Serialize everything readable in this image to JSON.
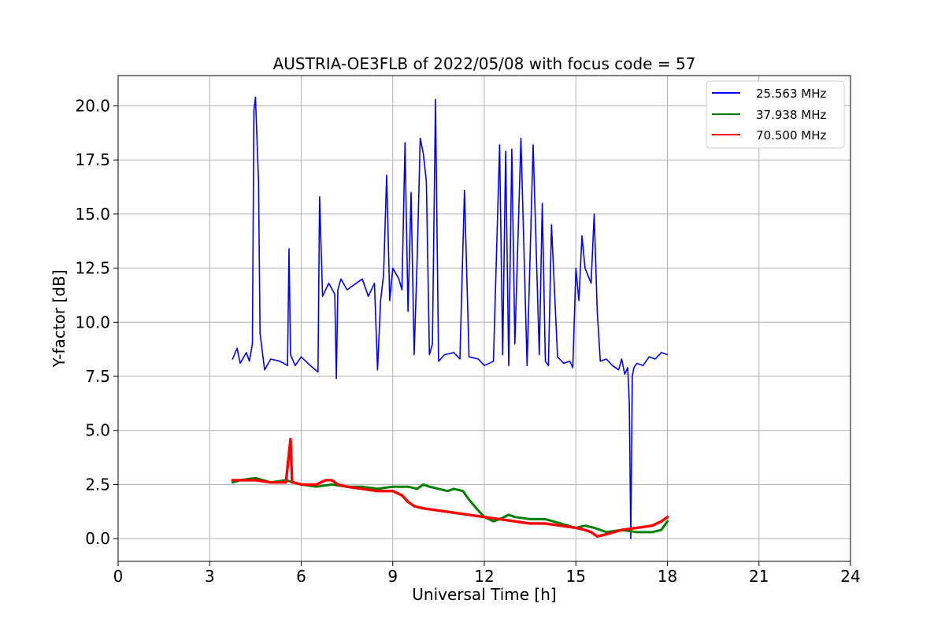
{
  "chart_data": {
    "type": "line",
    "title": "AUSTRIA-OE3FLB of 2022/05/08 with focus code = 57",
    "xlabel": "Universal Time [h]",
    "ylabel": "Y-factor [dB]",
    "xlim": [
      0,
      24
    ],
    "ylim": [
      -1.05,
      21.4
    ],
    "xticks": [
      0,
      3,
      6,
      9,
      12,
      15,
      18,
      21,
      24
    ],
    "xtick_labels": [
      "0",
      "3",
      "6",
      "9",
      "12",
      "15",
      "18",
      "21",
      "24"
    ],
    "yticks": [
      0.0,
      2.5,
      5.0,
      7.5,
      10.0,
      12.5,
      15.0,
      17.5,
      20.0
    ],
    "ytick_labels": [
      "0.0",
      "2.5",
      "5.0",
      "7.5",
      "10.0",
      "12.5",
      "15.0",
      "17.5",
      "20.0"
    ],
    "grid": true,
    "legend_position": "top-right",
    "series": [
      {
        "name": "25.563 MHz",
        "color": "#0000ff",
        "x": [
          3.75,
          3.9,
          4.0,
          4.2,
          4.3,
          4.4,
          4.45,
          4.5,
          4.55,
          4.6,
          4.65,
          4.8,
          5.0,
          5.3,
          5.55,
          5.6,
          5.65,
          5.8,
          6.0,
          6.3,
          6.55,
          6.6,
          6.7,
          6.9,
          7.1,
          7.15,
          7.2,
          7.3,
          7.5,
          7.8,
          8.0,
          8.2,
          8.4,
          8.5,
          8.6,
          8.7,
          8.8,
          8.9,
          9.0,
          9.2,
          9.3,
          9.4,
          9.5,
          9.6,
          9.7,
          9.8,
          9.9,
          10.0,
          10.1,
          10.2,
          10.3,
          10.4,
          10.5,
          10.7,
          11.0,
          11.2,
          11.35,
          11.5,
          11.8,
          12.0,
          12.3,
          12.5,
          12.6,
          12.7,
          12.8,
          12.9,
          13.0,
          13.2,
          13.4,
          13.6,
          13.8,
          13.9,
          14.0,
          14.1,
          14.2,
          14.4,
          14.6,
          14.8,
          14.9,
          15.0,
          15.1,
          15.2,
          15.3,
          15.5,
          15.6,
          15.7,
          15.8,
          16.0,
          16.2,
          16.4,
          16.5,
          16.6,
          16.7,
          16.75,
          16.8,
          16.85,
          16.9,
          17.0,
          17.2,
          17.4,
          17.6,
          17.8,
          18.0
        ],
        "values": [
          8.3,
          8.8,
          8.1,
          8.6,
          8.2,
          9.0,
          19.8,
          20.4,
          18.5,
          16.5,
          9.5,
          7.8,
          8.3,
          8.2,
          8.0,
          13.4,
          8.5,
          8.0,
          8.4,
          8.0,
          7.7,
          15.8,
          11.2,
          11.8,
          11.3,
          7.4,
          11.5,
          12.0,
          11.5,
          11.8,
          12.0,
          11.2,
          11.8,
          7.8,
          11.0,
          12.2,
          16.8,
          11.0,
          12.5,
          12.0,
          11.5,
          18.3,
          10.5,
          16.0,
          8.5,
          13.0,
          18.5,
          17.8,
          16.5,
          8.5,
          9.0,
          20.3,
          8.2,
          8.5,
          8.6,
          8.3,
          16.1,
          8.4,
          8.3,
          8.0,
          8.2,
          18.2,
          8.5,
          17.9,
          8.0,
          18.0,
          9.0,
          18.5,
          8.0,
          18.2,
          8.5,
          15.5,
          8.2,
          8.0,
          14.5,
          8.4,
          8.1,
          8.2,
          7.9,
          12.5,
          11.0,
          14.0,
          12.5,
          11.8,
          15.0,
          10.5,
          8.2,
          8.3,
          8.0,
          7.8,
          8.3,
          7.6,
          7.9,
          6.3,
          0.0,
          7.5,
          7.9,
          8.1,
          8.0,
          8.4,
          8.3,
          8.6,
          8.5
        ]
      },
      {
        "name": "37.938 MHz",
        "color": "#008000",
        "x": [
          3.75,
          4.0,
          4.5,
          5.0,
          5.5,
          6.0,
          6.5,
          7.0,
          7.5,
          8.0,
          8.5,
          9.0,
          9.5,
          9.8,
          10.0,
          10.2,
          10.5,
          10.8,
          11.0,
          11.3,
          11.5,
          11.8,
          12.0,
          12.3,
          12.5,
          12.8,
          13.0,
          13.5,
          14.0,
          14.5,
          15.0,
          15.3,
          15.6,
          15.8,
          16.0,
          16.5,
          17.0,
          17.5,
          17.8,
          18.0
        ],
        "values": [
          2.6,
          2.7,
          2.8,
          2.6,
          2.7,
          2.5,
          2.4,
          2.5,
          2.4,
          2.4,
          2.3,
          2.4,
          2.4,
          2.3,
          2.5,
          2.4,
          2.3,
          2.2,
          2.3,
          2.2,
          1.8,
          1.3,
          1.0,
          0.8,
          0.9,
          1.1,
          1.0,
          0.9,
          0.9,
          0.7,
          0.5,
          0.6,
          0.5,
          0.4,
          0.3,
          0.4,
          0.3,
          0.3,
          0.4,
          0.8
        ]
      },
      {
        "name": "70.500 MHz",
        "color": "#ff0000",
        "x": [
          3.75,
          4.0,
          4.5,
          5.0,
          5.5,
          5.65,
          5.7,
          5.75,
          6.0,
          6.5,
          6.8,
          7.0,
          7.2,
          7.5,
          8.0,
          8.5,
          9.0,
          9.3,
          9.5,
          9.7,
          10.0,
          10.5,
          11.0,
          11.5,
          12.0,
          12.5,
          13.0,
          13.5,
          14.0,
          14.5,
          15.0,
          15.3,
          15.5,
          15.7,
          16.0,
          16.5,
          17.0,
          17.5,
          17.8,
          18.0
        ],
        "values": [
          2.7,
          2.7,
          2.7,
          2.6,
          2.6,
          4.6,
          2.6,
          2.6,
          2.5,
          2.5,
          2.7,
          2.7,
          2.5,
          2.4,
          2.3,
          2.2,
          2.2,
          2.0,
          1.7,
          1.5,
          1.4,
          1.3,
          1.2,
          1.1,
          1.0,
          0.9,
          0.8,
          0.7,
          0.7,
          0.6,
          0.5,
          0.4,
          0.3,
          0.1,
          0.2,
          0.4,
          0.5,
          0.6,
          0.8,
          1.0
        ]
      }
    ]
  }
}
